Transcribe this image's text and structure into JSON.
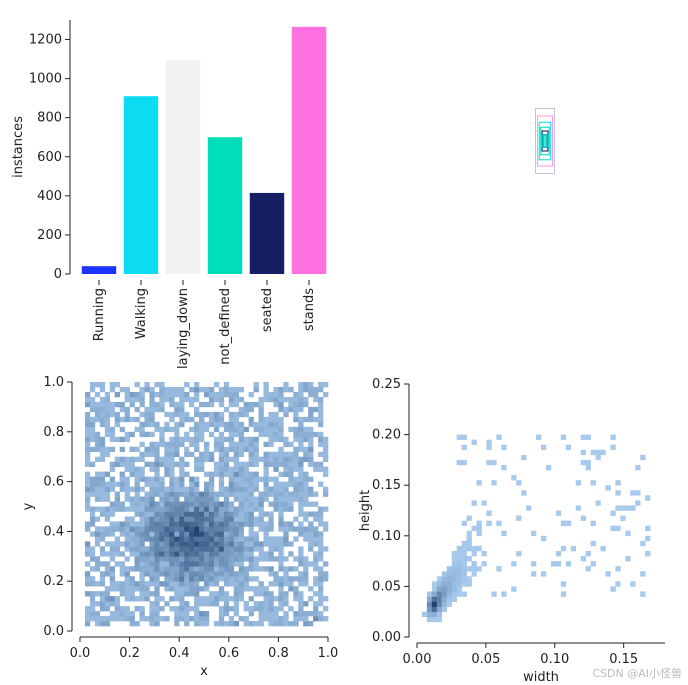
{
  "watermark": "CSDN @AI小怪兽",
  "chart_data": [
    {
      "type": "bar",
      "title": "",
      "xlabel": "",
      "ylabel": "instances",
      "categories": [
        "Running",
        "Walking",
        "laying_down",
        "not_defined",
        "seated",
        "stands"
      ],
      "values": [
        40,
        910,
        1095,
        700,
        415,
        1265
      ],
      "colors": [
        "#1a33ff",
        "#0bdcef",
        "#f2f2f2",
        "#00ddbb",
        "#142063",
        "#ff70e0"
      ],
      "ylim": [
        0,
        1300
      ],
      "yticks": [
        0,
        200,
        400,
        600,
        800,
        1000,
        1200
      ]
    },
    {
      "type": "scatter",
      "description": "bounding box overlay (label boxes centred)",
      "boxes": [
        {
          "w": 0.1,
          "h": 0.13,
          "color": "#aaaadd"
        },
        {
          "w": 0.08,
          "h": 0.1,
          "color": "#ff70e0"
        },
        {
          "w": 0.06,
          "h": 0.075,
          "color": "#0bdcef"
        },
        {
          "w": 0.045,
          "h": 0.055,
          "color": "#00ddbb"
        },
        {
          "w": 0.03,
          "h": 0.04,
          "color": "#142063"
        },
        {
          "w": 0.02,
          "h": 0.025,
          "color": "#1a33ff"
        }
      ]
    },
    {
      "type": "heatmap",
      "title": "",
      "xlabel": "x",
      "ylabel": "y",
      "xlim": [
        0,
        1
      ],
      "ylim": [
        0,
        1
      ],
      "xticks": [
        0.0,
        0.2,
        0.4,
        0.6,
        0.8,
        1.0
      ],
      "yticks": [
        0.0,
        0.2,
        0.4,
        0.6,
        0.8,
        1.0
      ],
      "xtick_labels": [
        "0.0",
        "0.2",
        "0.4",
        "0.6",
        "0.8",
        "1.0"
      ],
      "ytick_labels": [
        "0.0",
        "0.2",
        "0.4",
        "0.6",
        "0.8",
        "1.0"
      ],
      "bins": 50
    },
    {
      "type": "heatmap",
      "title": "",
      "xlabel": "width",
      "ylabel": "height",
      "xlim": [
        0,
        0.18
      ],
      "ylim": [
        0,
        0.25
      ],
      "xticks": [
        0.0,
        0.05,
        0.1,
        0.15
      ],
      "yticks": [
        0.0,
        0.05,
        0.1,
        0.15,
        0.2,
        0.25
      ],
      "xtick_labels": [
        "0.00",
        "0.05",
        "0.10",
        "0.15"
      ],
      "ytick_labels": [
        "0.00",
        "0.05",
        "0.10",
        "0.15",
        "0.20",
        "0.25"
      ],
      "bins": 50
    }
  ]
}
